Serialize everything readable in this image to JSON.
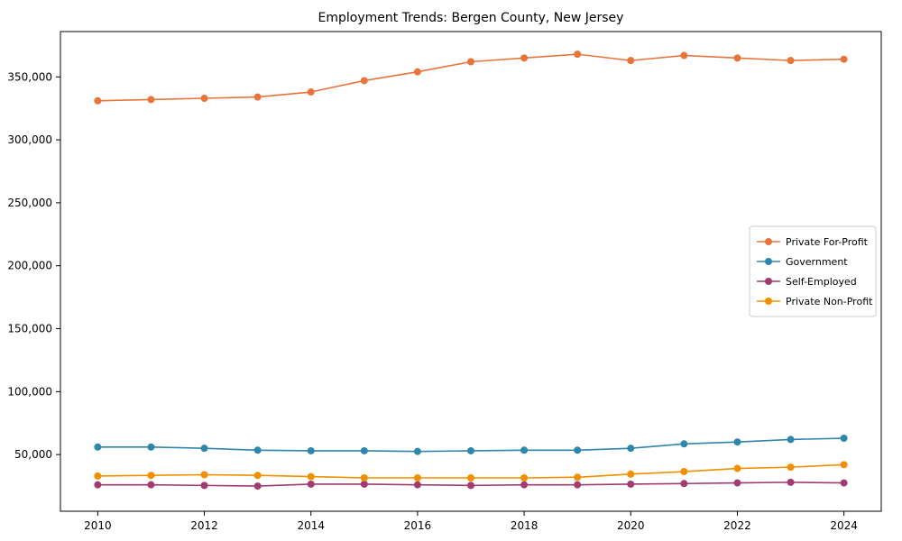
{
  "title": "Employment Trends: Bergen County, New Jersey",
  "chart_data": {
    "type": "line",
    "title": "Employment Trends: Bergen County, New Jersey",
    "xlabel": "",
    "ylabel": "",
    "x": [
      2010,
      2011,
      2012,
      2013,
      2014,
      2015,
      2016,
      2017,
      2018,
      2019,
      2020,
      2021,
      2022,
      2023,
      2024
    ],
    "series": [
      {
        "name": "Private For-Profit",
        "color": "#E8743B",
        "values": [
          331000,
          332000,
          333000,
          334000,
          338000,
          347000,
          354000,
          362000,
          365000,
          368000,
          363000,
          367000,
          365000,
          363000,
          364000
        ]
      },
      {
        "name": "Government",
        "color": "#2E86AB",
        "values": [
          56000,
          56000,
          55000,
          53500,
          53000,
          53000,
          52500,
          53000,
          53500,
          53500,
          55000,
          58500,
          60000,
          62000,
          63000
        ]
      },
      {
        "name": "Self-Employed",
        "color": "#A23B72",
        "values": [
          26000,
          26000,
          25500,
          25000,
          26500,
          26500,
          26000,
          25500,
          26000,
          26000,
          26500,
          27000,
          27500,
          28000,
          27500
        ]
      },
      {
        "name": "Private Non-Profit",
        "color": "#F18F01",
        "values": [
          33000,
          33500,
          34000,
          33500,
          32500,
          31500,
          31500,
          31500,
          31500,
          32000,
          34500,
          36500,
          39000,
          40000,
          42000
        ]
      }
    ],
    "xticks": [
      2010,
      2012,
      2014,
      2016,
      2018,
      2020,
      2022,
      2024
    ],
    "yticks": [
      50000,
      100000,
      150000,
      200000,
      250000,
      300000,
      350000
    ],
    "xlim": [
      2009.3,
      2024.7
    ],
    "ylim": [
      5000,
      386000
    ],
    "grid": false,
    "marker": "circle",
    "legend_position": "center right",
    "legend_entries": [
      "Private For-Profit",
      "Government",
      "Self-Employed",
      "Private Non-Profit"
    ]
  }
}
